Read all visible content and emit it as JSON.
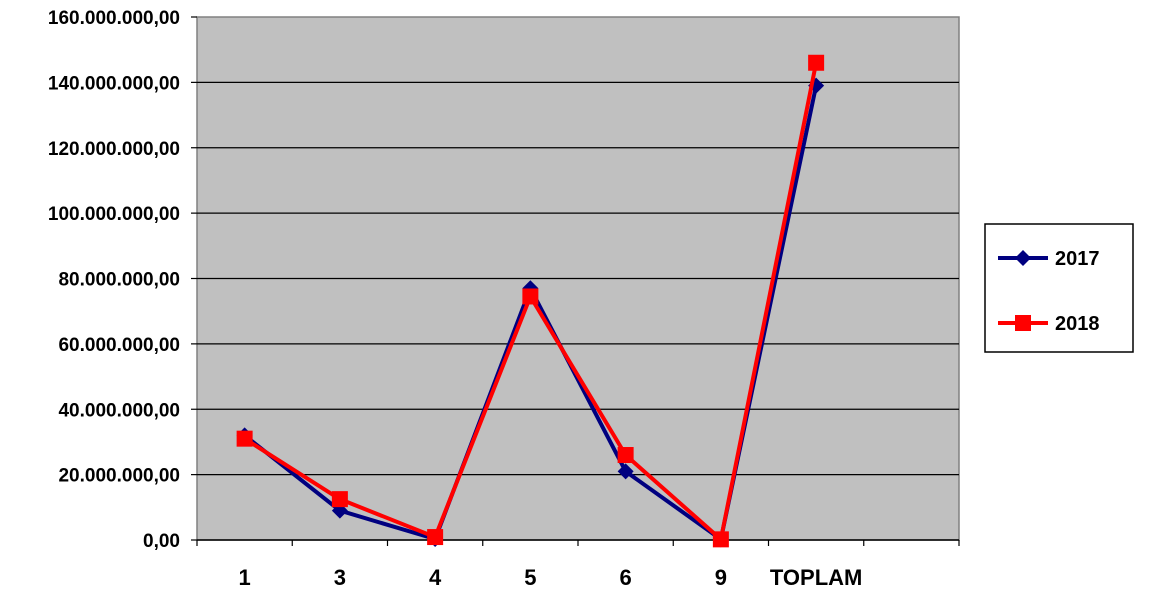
{
  "chart_data": {
    "type": "line",
    "title": "",
    "xlabel": "",
    "ylabel": "",
    "categories": [
      "1",
      "3",
      "4",
      "5",
      "6",
      "9",
      "TOPLAM"
    ],
    "ylim": [
      0,
      160000000
    ],
    "ytick_values": [
      0,
      20000000,
      40000000,
      60000000,
      80000000,
      100000000,
      120000000,
      140000000,
      160000000
    ],
    "ytick_labels": [
      "0,00",
      "20.000.000,00",
      "40.000.000,00",
      "60.000.000,00",
      "80.000.000,00",
      "100.000.000,00",
      "120.000.000,00",
      "140.000.000,00",
      "160.000.000,00"
    ],
    "grid": true,
    "plot_background": "#c0c0c0",
    "legend_position": "right",
    "series": [
      {
        "name": "2017",
        "color": "#000080",
        "marker": "diamond",
        "values": [
          32000000,
          9000000,
          300000,
          77000000,
          21000000,
          200000,
          139000000
        ]
      },
      {
        "name": "2018",
        "color": "#ff0000",
        "marker": "square",
        "values": [
          31000000,
          12500000,
          900000,
          74500000,
          26000000,
          200000,
          146000000
        ]
      }
    ]
  }
}
